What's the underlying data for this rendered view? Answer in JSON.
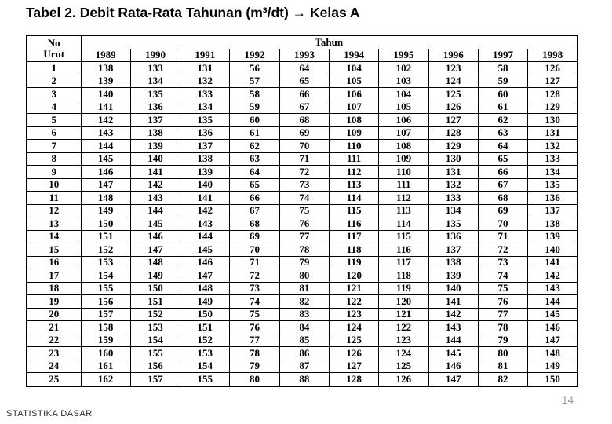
{
  "title": "Tabel 2. Debit Rata-Rata Tahunan (m³/dt) → Kelas A",
  "table": {
    "corner_header": {
      "line1": "No",
      "line2": "Urut"
    },
    "group_header": "Tahun",
    "years": [
      "1989",
      "1990",
      "1991",
      "1992",
      "1993",
      "1994",
      "1995",
      "1996",
      "1997",
      "1998"
    ],
    "rows": [
      [
        1,
        138,
        133,
        131,
        56,
        64,
        104,
        102,
        123,
        58,
        126
      ],
      [
        2,
        139,
        134,
        132,
        57,
        65,
        105,
        103,
        124,
        59,
        127
      ],
      [
        3,
        140,
        135,
        133,
        58,
        66,
        106,
        104,
        125,
        60,
        128
      ],
      [
        4,
        141,
        136,
        134,
        59,
        67,
        107,
        105,
        126,
        61,
        129
      ],
      [
        5,
        142,
        137,
        135,
        60,
        68,
        108,
        106,
        127,
        62,
        130
      ],
      [
        6,
        143,
        138,
        136,
        61,
        69,
        109,
        107,
        128,
        63,
        131
      ],
      [
        7,
        144,
        139,
        137,
        62,
        70,
        110,
        108,
        129,
        64,
        132
      ],
      [
        8,
        145,
        140,
        138,
        63,
        71,
        111,
        109,
        130,
        65,
        133
      ],
      [
        9,
        146,
        141,
        139,
        64,
        72,
        112,
        110,
        131,
        66,
        134
      ],
      [
        10,
        147,
        142,
        140,
        65,
        73,
        113,
        111,
        132,
        67,
        135
      ],
      [
        11,
        148,
        143,
        141,
        66,
        74,
        114,
        112,
        133,
        68,
        136
      ],
      [
        12,
        149,
        144,
        142,
        67,
        75,
        115,
        113,
        134,
        69,
        137
      ],
      [
        13,
        150,
        145,
        143,
        68,
        76,
        116,
        114,
        135,
        70,
        138
      ],
      [
        14,
        151,
        146,
        144,
        69,
        77,
        117,
        115,
        136,
        71,
        139
      ],
      [
        15,
        152,
        147,
        145,
        70,
        78,
        118,
        116,
        137,
        72,
        140
      ],
      [
        16,
        153,
        148,
        146,
        71,
        79,
        119,
        117,
        138,
        73,
        141
      ],
      [
        17,
        154,
        149,
        147,
        72,
        80,
        120,
        118,
        139,
        74,
        142
      ],
      [
        18,
        155,
        150,
        148,
        73,
        81,
        121,
        119,
        140,
        75,
        143
      ],
      [
        19,
        156,
        151,
        149,
        74,
        82,
        122,
        120,
        141,
        76,
        144
      ],
      [
        20,
        157,
        152,
        150,
        75,
        83,
        123,
        121,
        142,
        77,
        145
      ],
      [
        21,
        158,
        153,
        151,
        76,
        84,
        124,
        122,
        143,
        78,
        146
      ],
      [
        22,
        159,
        154,
        152,
        77,
        85,
        125,
        123,
        144,
        79,
        147
      ],
      [
        23,
        160,
        155,
        153,
        78,
        86,
        126,
        124,
        145,
        80,
        148
      ],
      [
        24,
        161,
        156,
        154,
        79,
        87,
        127,
        125,
        146,
        81,
        149
      ],
      [
        25,
        162,
        157,
        155,
        80,
        88,
        128,
        126,
        147,
        82,
        150
      ]
    ]
  },
  "footer": "STATISTIKA DASAR",
  "page_number": "14",
  "colors": {
    "text": "#000000",
    "border": "#000000",
    "page_number_gray": "#9a9a9a",
    "background": "#ffffff"
  }
}
